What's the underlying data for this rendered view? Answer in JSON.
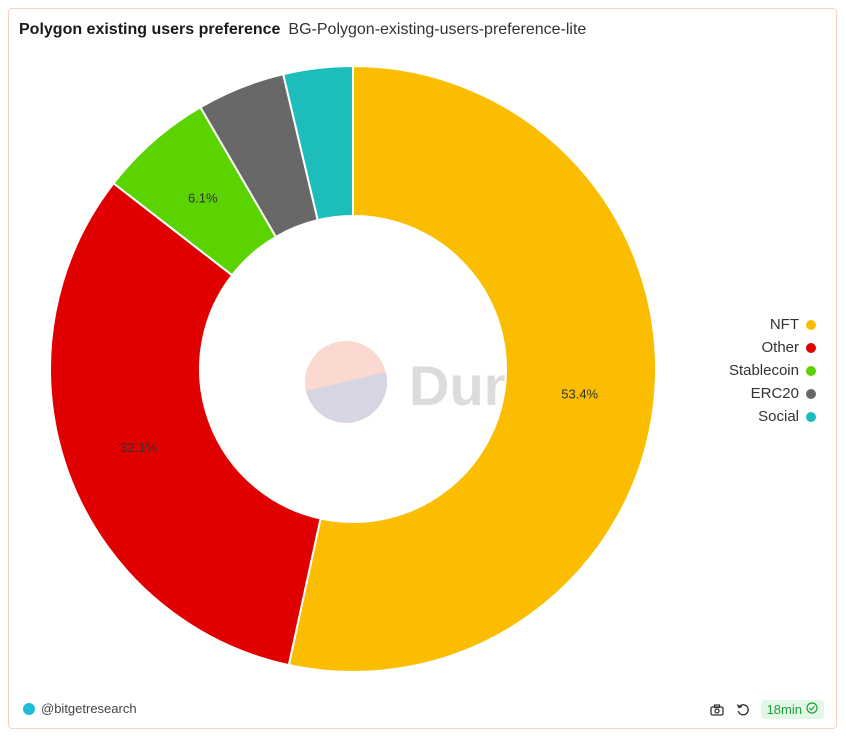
{
  "header": {
    "title": "Polygon existing users preference",
    "subtitle": "BG-Polygon-existing-users-preference-lite"
  },
  "watermark": {
    "text": "Dune"
  },
  "chart_data": {
    "type": "pie",
    "donut": true,
    "categories": [
      "NFT",
      "Other",
      "Stablecoin",
      "ERC20",
      "Social"
    ],
    "values": [
      53.4,
      32.1,
      6.1,
      4.7,
      3.7
    ],
    "colors": [
      "#fbbd00",
      "#e00000",
      "#5ad300",
      "#686868",
      "#1cbdba"
    ],
    "data_labels": [
      "53.4%",
      "32.1%",
      "6.1%",
      "",
      ""
    ],
    "legend": {
      "position": "right",
      "items": [
        {
          "label": "NFT",
          "color": "#fbbd00"
        },
        {
          "label": "Other",
          "color": "#e00000"
        },
        {
          "label": "Stablecoin",
          "color": "#5ad300"
        },
        {
          "label": "ERC20",
          "color": "#686868"
        },
        {
          "label": "Social",
          "color": "#1cbdba"
        }
      ]
    }
  },
  "footer": {
    "author": "@bitgetresearch",
    "status": "18min",
    "icons": {
      "camera": "camera-icon",
      "refresh": "refresh-icon",
      "check": "check-circle-icon"
    }
  }
}
